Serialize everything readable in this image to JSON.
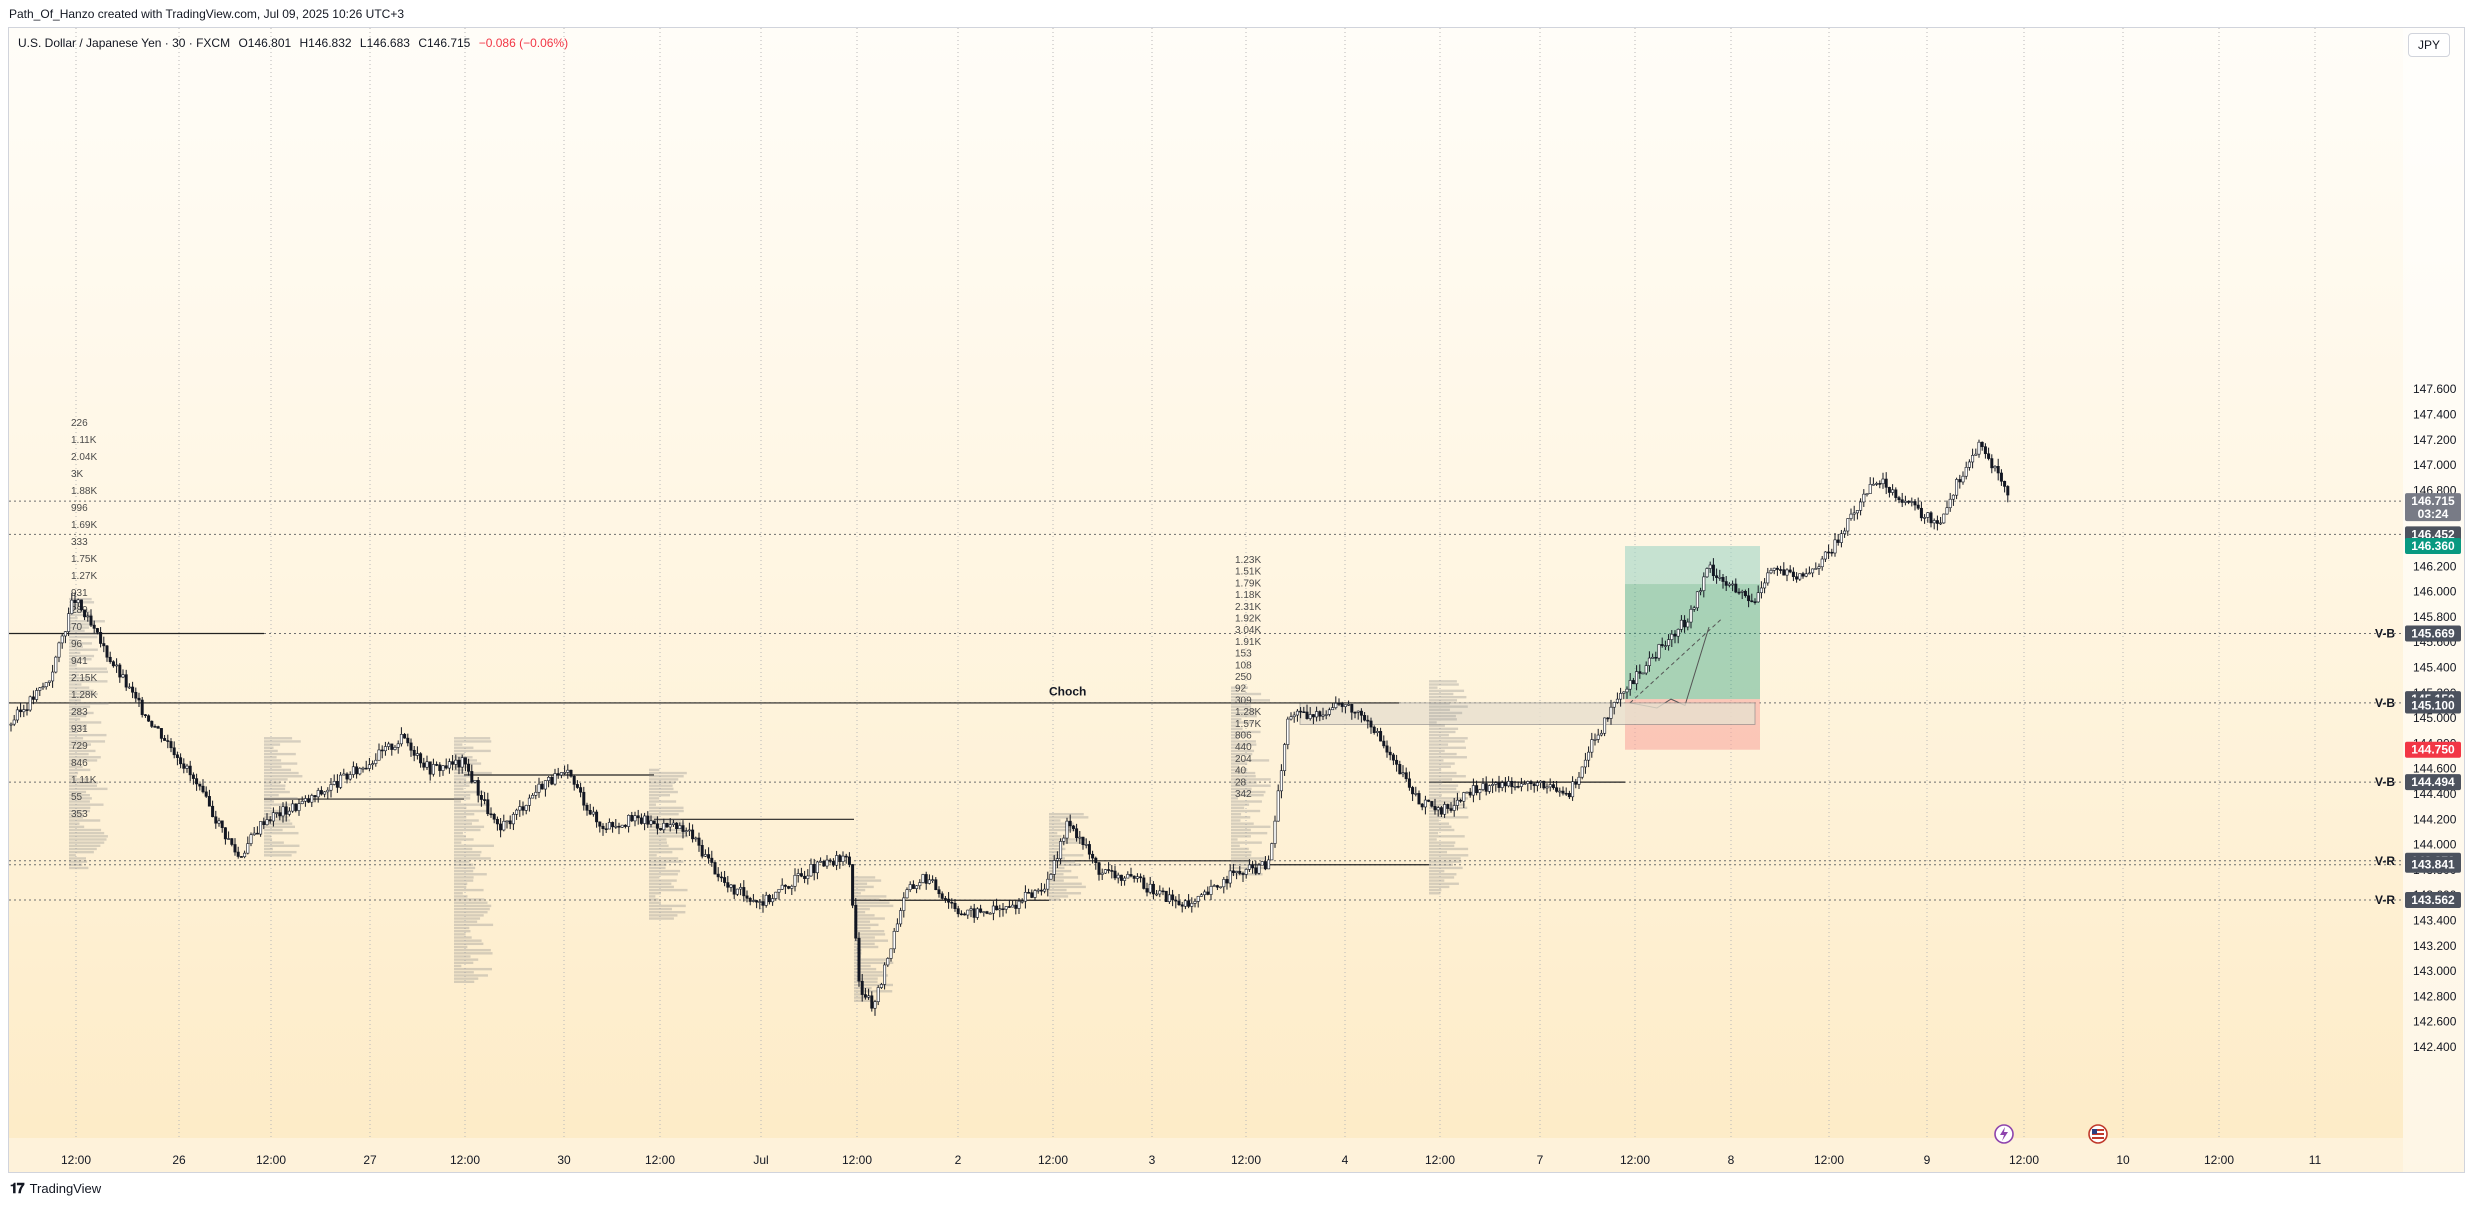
{
  "header": {
    "created_by": "Path_Of_Hanzo created with TradingView.com, Jul 09, 2025 10:26 UTC+3"
  },
  "symbol": {
    "name": "U.S. Dollar / Japanese Yen · 30 · FXCM",
    "open": "O146.801",
    "high": "H146.832",
    "low": "L146.683",
    "close": "C146.715",
    "change": "−0.086 (−0.06%)"
  },
  "currency": "JPY",
  "colors": {
    "accent_green": "#089981",
    "accent_red": "#f23645",
    "tag_dark": "#4c525e",
    "candle": "#131722"
  },
  "price_axis": [
    "147.600",
    "147.400",
    "147.200",
    "147.000",
    "146.800",
    "146.600",
    "146.400",
    "146.200",
    "146.000",
    "145.800",
    "145.600",
    "145.400",
    "145.200",
    "145.000",
    "144.800",
    "144.600",
    "144.400",
    "144.200",
    "144.000",
    "143.800",
    "143.600",
    "143.400",
    "143.200",
    "143.000",
    "142.800",
    "142.600",
    "142.400"
  ],
  "time_axis": [
    "12:00",
    "26",
    "12:00",
    "27",
    "12:00",
    "30",
    "12:00",
    "Jul",
    "12:00",
    "2",
    "12:00",
    "3",
    "12:00",
    "4",
    "12:00",
    "7",
    "12:00",
    "8",
    "12:00",
    "9",
    "12:00",
    "10",
    "12:00",
    "11"
  ],
  "price_tags": [
    {
      "price": "146.715",
      "sub": "03:24",
      "color": "#787b86"
    },
    {
      "price": "146.452",
      "color": "#4c525e"
    },
    {
      "price": "146.360",
      "color": "#089981"
    },
    {
      "price": "145.669",
      "color": "#4c525e"
    },
    {
      "price": "145.150",
      "color": "#4c525e"
    },
    {
      "price": "145.100",
      "color": "#4c525e"
    },
    {
      "price": "144.750",
      "color": "#f23645"
    },
    {
      "price": "144.494",
      "color": "#4c525e"
    },
    {
      "price": "143.872",
      "color": "#4c525e"
    },
    {
      "price": "143.841",
      "color": "#4c525e"
    },
    {
      "price": "143.562",
      "color": "#4c525e"
    }
  ],
  "level_labels": [
    {
      "text": "V-B",
      "price": 145.669
    },
    {
      "text": "V-B",
      "price": 145.12
    },
    {
      "text": "V-B",
      "price": 144.494
    },
    {
      "text": "V-R",
      "price": 143.872
    },
    {
      "text": "V-R",
      "price": 143.562
    }
  ],
  "annotations": {
    "choch": "Choch"
  },
  "volume_profile_left": [
    "226",
    "1.11K",
    "2.04K",
    "3K",
    "1.88K",
    "996",
    "1.69K",
    "333",
    "1.75K",
    "1.27K",
    "931",
    "289",
    "70",
    "96",
    "941",
    "2.15K",
    "1.28K",
    "283",
    "931",
    "729",
    "846",
    "1.11K",
    "55",
    "353"
  ],
  "volume_profile_mid": [
    "1.23K",
    "1.51K",
    "1.79K",
    "1.18K",
    "2.31K",
    "1.92K",
    "3.04K",
    "1.91K",
    "153",
    "108",
    "250",
    "92",
    "309",
    "1.28K",
    "1.57K",
    "806",
    "440",
    "204",
    "40",
    "28",
    "342"
  ],
  "footer": {
    "brand": "TradingView"
  }
}
